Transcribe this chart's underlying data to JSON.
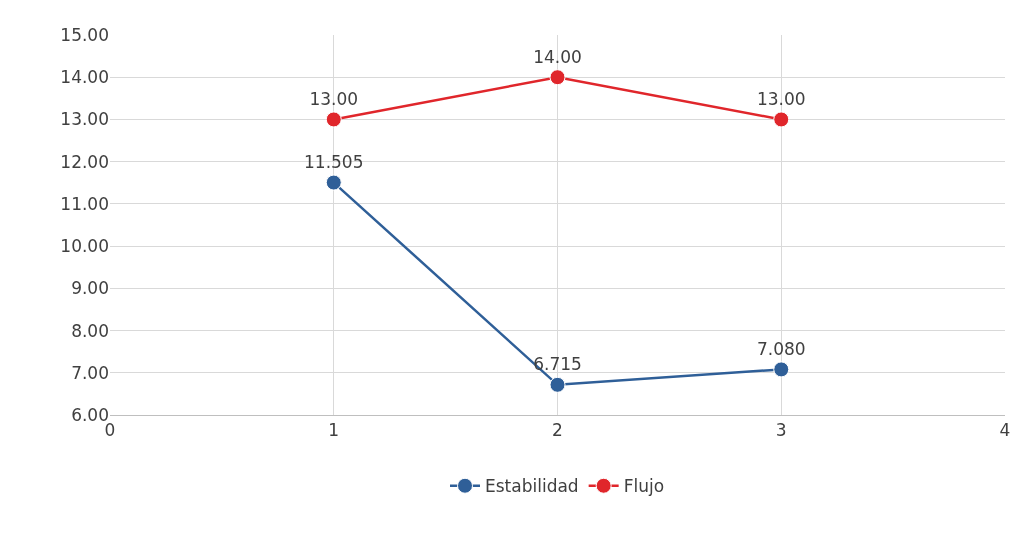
{
  "chart_data": {
    "type": "line",
    "x": [
      1,
      2,
      3
    ],
    "series": [
      {
        "name": "Estabilidad",
        "color": "#2f5f98",
        "values": [
          11.505,
          6.715,
          7.08
        ],
        "value_labels": [
          "11.505",
          "6.715",
          "7.080"
        ]
      },
      {
        "name": "Flujo",
        "color": "#e0262b",
        "values": [
          13,
          14,
          13
        ],
        "value_labels": [
          "13.00",
          "14.00",
          "13.00"
        ]
      }
    ],
    "xlim": [
      0,
      4
    ],
    "xticks": [
      0,
      1,
      2,
      3,
      4
    ],
    "ylim": [
      6,
      15
    ],
    "yticks": [
      {
        "value": 6,
        "label": "6.00"
      },
      {
        "value": 7,
        "label": "7.00"
      },
      {
        "value": 8,
        "label": "8.00"
      },
      {
        "value": 9,
        "label": "9.00"
      },
      {
        "value": 10,
        "label": "10.00"
      },
      {
        "value": 11,
        "label": "11.00"
      },
      {
        "value": 12,
        "label": "12.00"
      },
      {
        "value": 13,
        "label": "13.00"
      },
      {
        "value": 14,
        "label": "14.00"
      },
      {
        "value": 15,
        "label": "15.00"
      }
    ],
    "grid": true,
    "legend": "bottom",
    "marker": "circle",
    "line_style": "solid"
  }
}
